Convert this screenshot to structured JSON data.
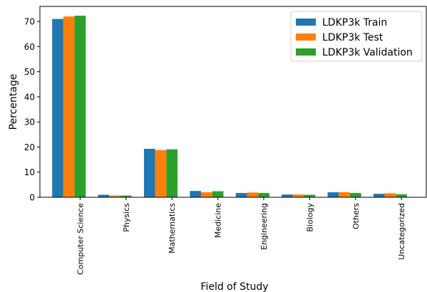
{
  "chart_data": {
    "type": "bar",
    "title": "",
    "xlabel": "Field of Study",
    "ylabel": "Percentage",
    "ylim": [
      0,
      76
    ],
    "yticks": [
      0,
      10,
      20,
      30,
      40,
      50,
      60,
      70
    ],
    "categories": [
      "Computer Science",
      "Physics",
      "Mathematics",
      "Medicine",
      "Engineering",
      "Biology",
      "Others",
      "Uncategorized"
    ],
    "series": [
      {
        "name": "LDKP3k Train",
        "color": "#1f77b4",
        "values": [
          71.0,
          1.0,
          19.3,
          2.5,
          1.7,
          1.1,
          2.0,
          1.4
        ]
      },
      {
        "name": "LDKP3k Test",
        "color": "#ff7f0e",
        "values": [
          72.0,
          0.7,
          18.8,
          2.0,
          1.9,
          1.1,
          2.0,
          1.6
        ]
      },
      {
        "name": "LDKP3k Validation",
        "color": "#2ca02c",
        "values": [
          72.3,
          0.7,
          19.1,
          2.4,
          1.7,
          1.0,
          1.7,
          1.2
        ]
      }
    ],
    "legend_position": "top-right",
    "grid": false
  }
}
